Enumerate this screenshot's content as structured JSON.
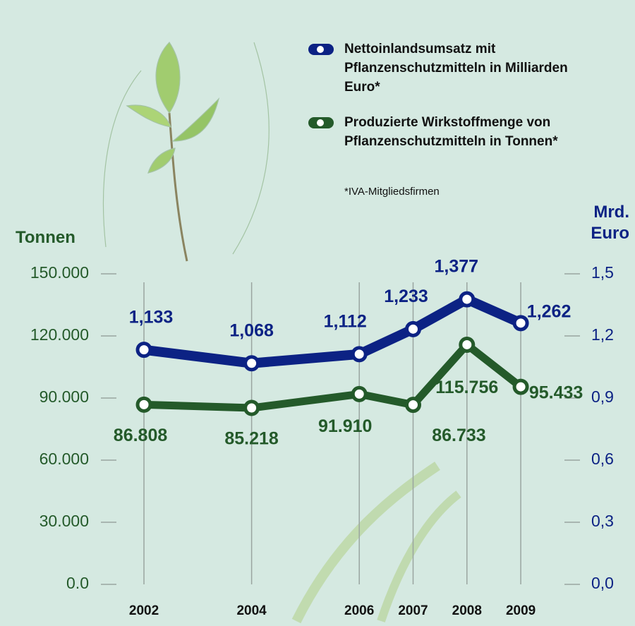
{
  "chart_data": {
    "type": "line",
    "x": [
      2002,
      2004,
      2006,
      2007,
      2008,
      2009
    ],
    "xlim": [
      2001.2,
      2010.1
    ],
    "xticks": [
      2002,
      2004,
      2006,
      2007,
      2008,
      2009
    ],
    "ylabel": "Tonnen",
    "y2label": "Mrd. Euro",
    "ylim": [
      0,
      150000
    ],
    "yticks": [
      {
        "value": 0,
        "label": "0.0"
      },
      {
        "value": 30000,
        "label": "30.000"
      },
      {
        "value": 60000,
        "label": "60.000"
      },
      {
        "value": 90000,
        "label": "90.000"
      },
      {
        "value": 120000,
        "label": "120.000"
      },
      {
        "value": 150000,
        "label": "150.000"
      }
    ],
    "y2lim": [
      0,
      1.5
    ],
    "y2ticks": [
      {
        "value": 0,
        "label": "0,0"
      },
      {
        "value": 0.3,
        "label": "0,3"
      },
      {
        "value": 0.6,
        "label": "0,6"
      },
      {
        "value": 0.9,
        "label": "0,9"
      },
      {
        "value": 1.2,
        "label": "1,2"
      },
      {
        "value": 1.5,
        "label": "1,5"
      }
    ],
    "series": [
      {
        "name": "Nettoinlandsumsatz mit Pflanzenschutzmitteln in Milliarden Euro*",
        "color": "#0c2284",
        "axis": "y2",
        "values": [
          1.133,
          1.068,
          1.112,
          1.233,
          1.377,
          1.262
        ],
        "value_labels": [
          "1,133",
          "1,068",
          "1,112",
          "1,233",
          "1,377",
          "1,262"
        ]
      },
      {
        "name": "Produzierte Wirkstoffmenge von Pflanzenschutzmitteln in Tonnen*",
        "color": "#245a2a",
        "values": [
          86808,
          85218,
          91910,
          86733,
          115756,
          95433
        ],
        "value_labels": [
          "86.808",
          "85.218",
          "91.910",
          "86.733",
          "115.756",
          "95.433"
        ]
      }
    ],
    "footnote": "*IVA-Mitgliedsfirmen"
  }
}
